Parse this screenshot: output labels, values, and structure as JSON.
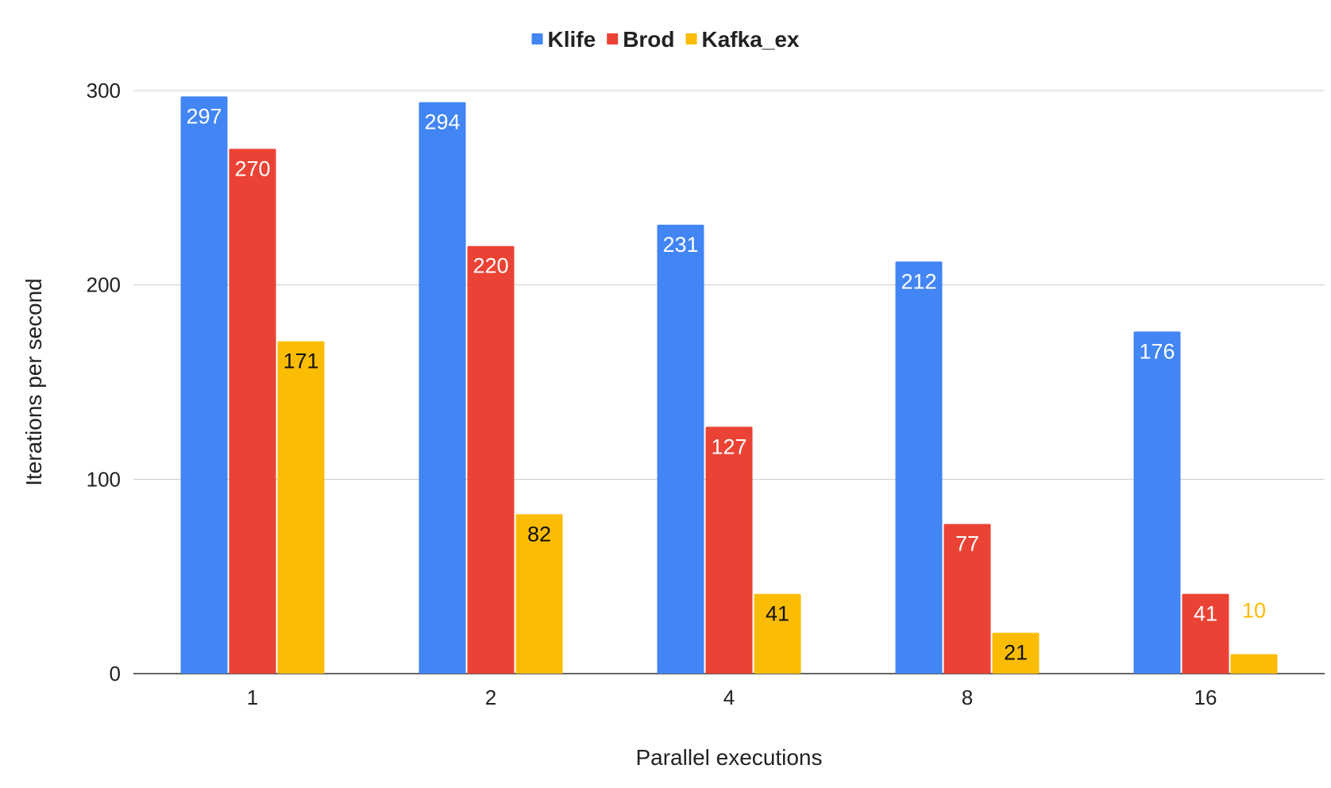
{
  "chart_data": {
    "type": "bar",
    "title": "",
    "xlabel": "Parallel executions",
    "ylabel": "Iterations per second",
    "categories": [
      "1",
      "2",
      "4",
      "8",
      "16"
    ],
    "ylim": [
      0,
      300
    ],
    "yticks": [
      0,
      100,
      200,
      300
    ],
    "grid": true,
    "legend_position": "top",
    "series": [
      {
        "name": "Klife",
        "color": "#4285F4",
        "values": [
          297,
          294,
          231,
          212,
          176
        ]
      },
      {
        "name": "Brod",
        "color": "#EA4335",
        "values": [
          270,
          220,
          127,
          77,
          41
        ]
      },
      {
        "name": "Kafka_ex",
        "color": "#FBBC04",
        "values": [
          171,
          82,
          41,
          21,
          10
        ]
      }
    ]
  }
}
